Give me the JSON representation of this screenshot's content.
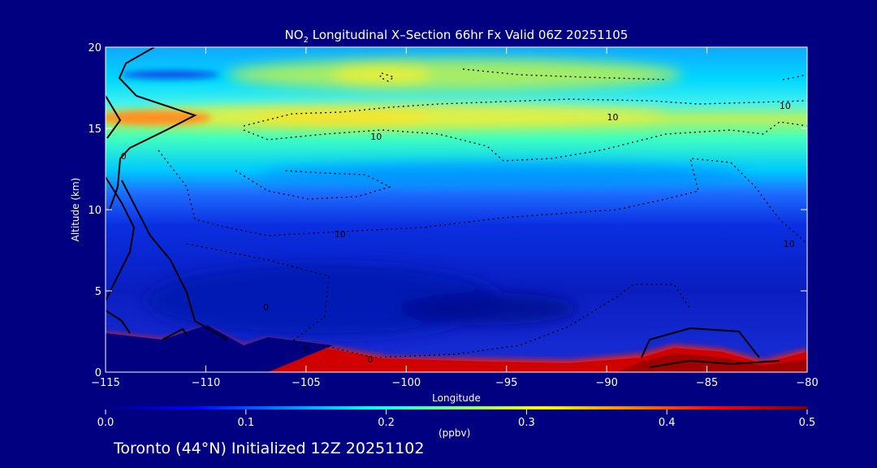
{
  "chart_data": {
    "type": "heatmap",
    "title_prefix": "NO",
    "title_sub": "2",
    "title_suffix": " Longitudinal X–Section 66hr  Fx Valid 06Z 20251105",
    "xlabel": "Longitude",
    "ylabel": "Altitude (km)",
    "xlim": [
      -115,
      -80
    ],
    "ylim": [
      0,
      20
    ],
    "xticks": [
      -115,
      -110,
      -105,
      -100,
      -95,
      -90,
      -85,
      -80
    ],
    "xtick_labels": [
      "−115",
      "−110",
      "−105",
      "−100",
      "−95",
      "−90",
      "−85",
      "−80"
    ],
    "yticks": [
      0,
      5,
      10,
      15,
      20
    ],
    "ytick_labels": [
      "0",
      "5",
      "10",
      "15",
      "20"
    ],
    "colorbar": {
      "range": [
        0,
        0.5
      ],
      "ticks": [
        0.0,
        0.1,
        0.2,
        0.3,
        0.4,
        0.5
      ],
      "tick_labels": [
        "0.0",
        "0.1",
        "0.2",
        "0.3",
        "0.4",
        "0.5"
      ],
      "units": "(ppbv)",
      "colormap": "jet"
    },
    "contour_labels": [
      {
        "text": "10",
        "x": -101.5,
        "y": 14.5
      },
      {
        "text": "10",
        "x": -89.7,
        "y": 15.7
      },
      {
        "text": "10",
        "x": -81.1,
        "y": 16.4
      },
      {
        "text": "10",
        "x": -103.3,
        "y": 8.5
      },
      {
        "text": "10",
        "x": -80.9,
        "y": 7.9
      },
      {
        "text": "0",
        "x": -114.1,
        "y": 13.3
      },
      {
        "text": "0",
        "x": -107.0,
        "y": 4.0
      },
      {
        "text": "0",
        "x": -105.0,
        "y": 1.4
      },
      {
        "text": "0",
        "x": -101.8,
        "y": 0.8
      }
    ]
  },
  "footer": "Toronto (44°N) Initialized 12Z 20251102"
}
